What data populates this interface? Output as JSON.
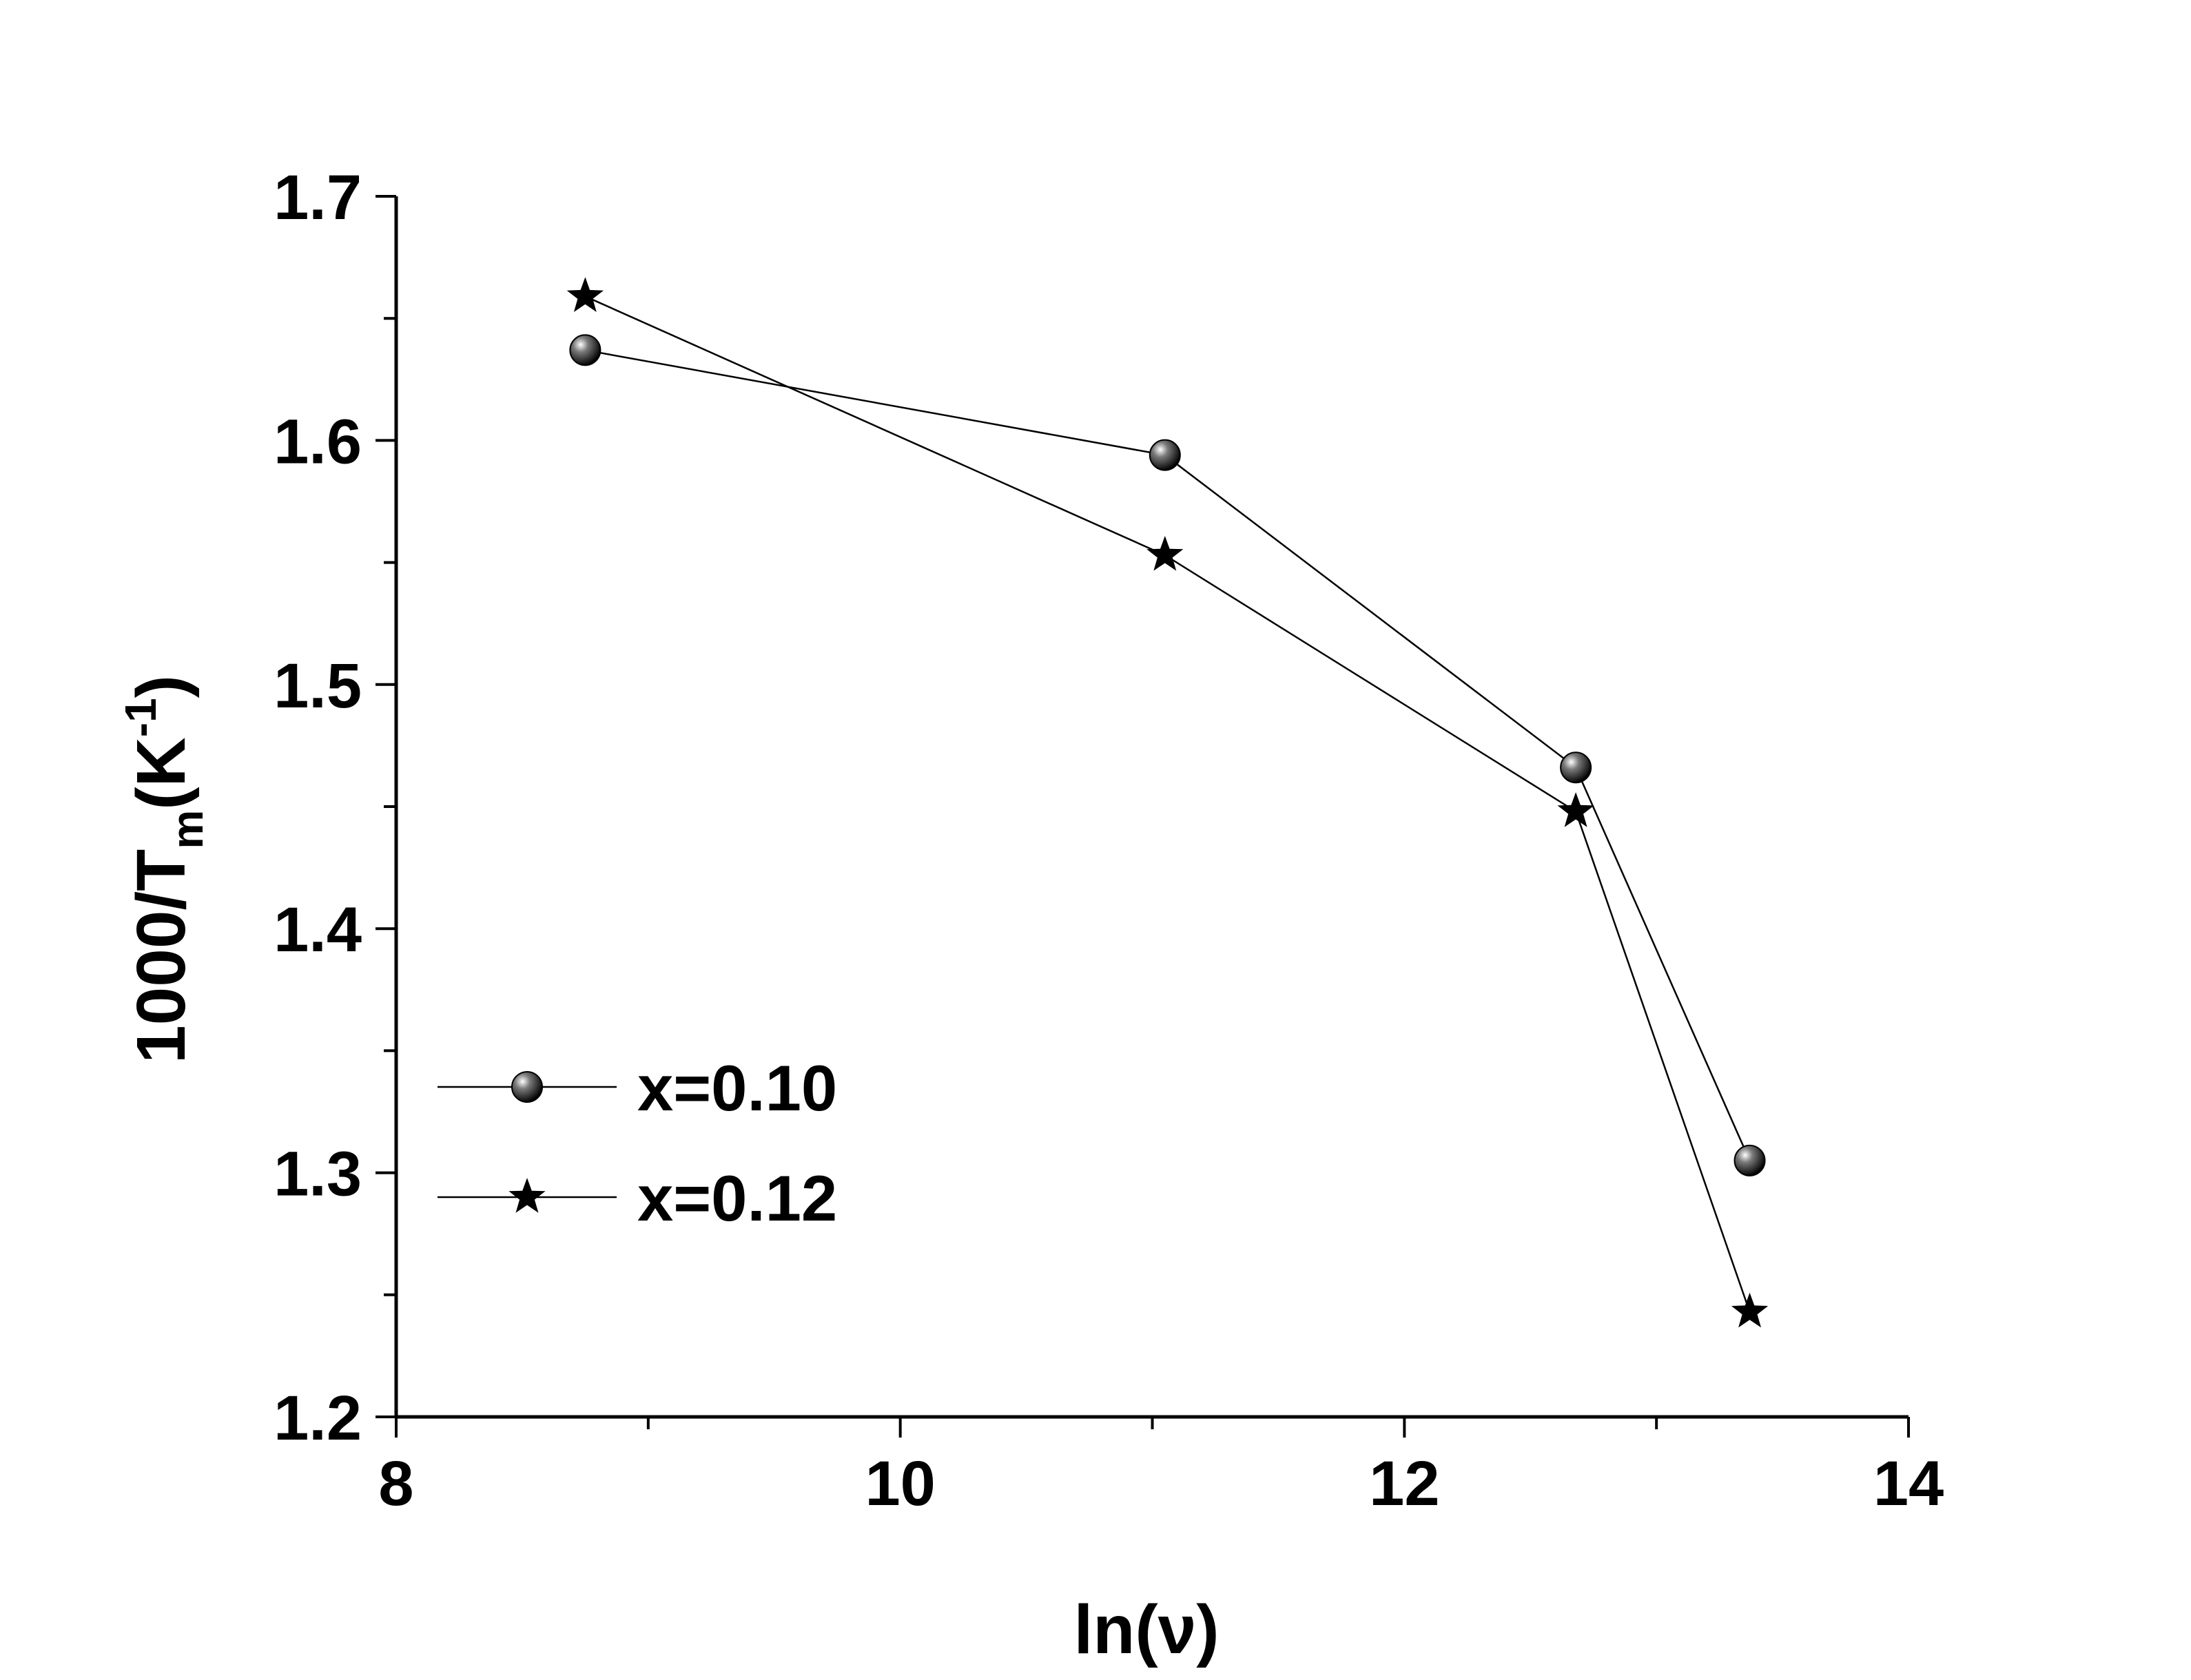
{
  "chart_data": {
    "type": "line",
    "xlabel": "ln(ν)",
    "ylabel": {
      "main": "1000/T",
      "sub": "m",
      "unit_open": "(K",
      "sup": "-1",
      "unit_close": ")"
    },
    "xlim": [
      8,
      14
    ],
    "ylim": [
      1.2,
      1.7
    ],
    "xticks": [
      "8",
      "10",
      "12",
      "14"
    ],
    "yticks": [
      "1.2",
      "1.3",
      "1.4",
      "1.5",
      "1.6",
      "1.7"
    ],
    "grid": false,
    "legend_position": "bottom-left",
    "series": [
      {
        "name": "x=0.10",
        "marker": "sphere",
        "x": [
          8.75,
          11.05,
          12.68,
          13.37
        ],
        "y": [
          1.637,
          1.594,
          1.466,
          1.305
        ]
      },
      {
        "name": "x=0.12",
        "marker": "star",
        "x": [
          8.75,
          11.05,
          12.68,
          13.37
        ],
        "y": [
          1.659,
          1.553,
          1.448,
          1.243
        ]
      }
    ]
  }
}
